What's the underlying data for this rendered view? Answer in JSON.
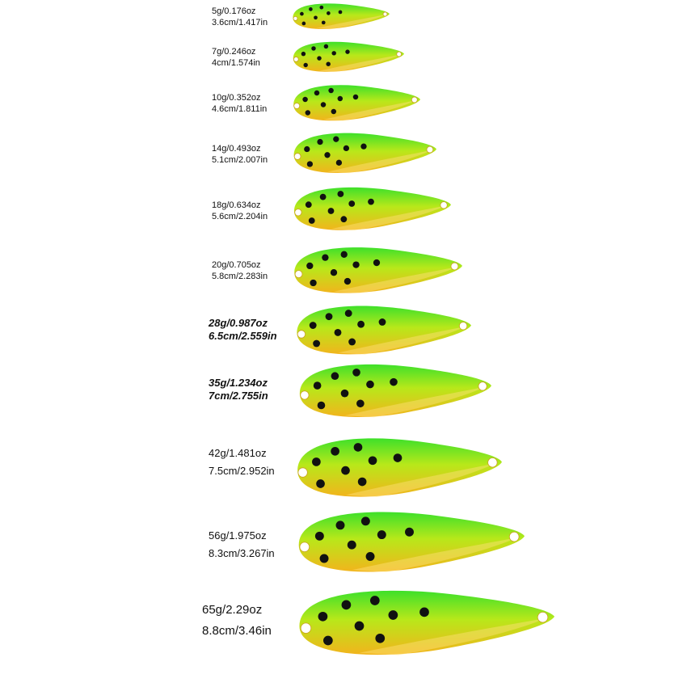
{
  "lures": [
    {
      "weight": "5g/0.176oz",
      "length": "3.6cm/1.417in",
      "style": "normal"
    },
    {
      "weight": "7g/0.246oz",
      "length": "4cm/1.574in",
      "style": "normal"
    },
    {
      "weight": "10g/0.352oz",
      "length": "4.6cm/1.811in",
      "style": "normal"
    },
    {
      "weight": "14g/0.493oz",
      "length": "5.1cm/2.007in",
      "style": "normal"
    },
    {
      "weight": "18g/0.634oz",
      "length": "5.6cm/2.204in",
      "style": "normal"
    },
    {
      "weight": "20g/0.705oz",
      "length": "5.8cm/2.283in",
      "style": "normal"
    },
    {
      "weight": "28g/0.987oz",
      "length": "6.5cm/2.559in",
      "style": "bold-italic"
    },
    {
      "weight": "35g/1.234oz",
      "length": "7cm/2.755in",
      "style": "bold-italic"
    },
    {
      "weight": "42g/1.481oz",
      "length": "7.5cm/2.952in",
      "style": "normal"
    },
    {
      "weight": "56g/1.975oz",
      "length": "8.3cm/3.267in",
      "style": "normal"
    },
    {
      "weight": "65g/2.29oz",
      "length": "8.8cm/3.46in",
      "style": "normal"
    }
  ],
  "colors": {
    "lure_top": "#3ee02a",
    "lure_mid": "#b8e81a",
    "lure_bottom": "#f2b41c",
    "dot": "#111111"
  },
  "icons": [
    "spoon-lure-icon"
  ]
}
